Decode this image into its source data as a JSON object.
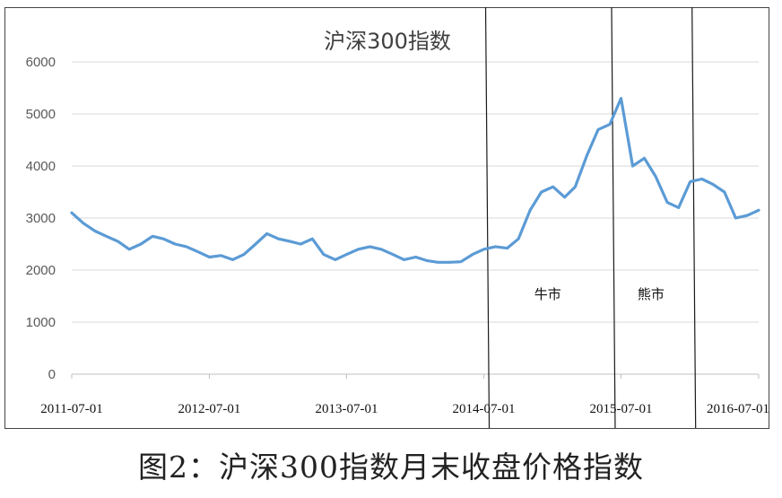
{
  "caption": "图2：沪深300指数月末收盘价格指数",
  "chart_data": {
    "type": "line",
    "title": "沪深300指数",
    "xlabel": "",
    "ylabel": "",
    "ylim": [
      0,
      6000
    ],
    "yticks": [
      0,
      1000,
      2000,
      3000,
      4000,
      5000,
      6000
    ],
    "xticks": [
      "2011-07-01",
      "2012-07-01",
      "2013-07-01",
      "2014-07-01",
      "2015-07-01",
      "2016-07-01"
    ],
    "grid": "horizontal",
    "legend": "none",
    "line_color": "#5b9bd5",
    "annotations": [
      {
        "label": "牛市",
        "from": "2014-07-01",
        "to": "2015-06-01"
      },
      {
        "label": "熊市",
        "from": "2015-06-01",
        "to": "2016-01-01"
      }
    ],
    "x": [
      "2011-07-01",
      "2011-08-01",
      "2011-09-01",
      "2011-10-01",
      "2011-11-01",
      "2011-12-01",
      "2012-01-01",
      "2012-02-01",
      "2012-03-01",
      "2012-04-01",
      "2012-05-01",
      "2012-06-01",
      "2012-07-01",
      "2012-08-01",
      "2012-09-01",
      "2012-10-01",
      "2012-11-01",
      "2012-12-01",
      "2013-01-01",
      "2013-02-01",
      "2013-03-01",
      "2013-04-01",
      "2013-05-01",
      "2013-06-01",
      "2013-07-01",
      "2013-08-01",
      "2013-09-01",
      "2013-10-01",
      "2013-11-01",
      "2013-12-01",
      "2014-01-01",
      "2014-02-01",
      "2014-03-01",
      "2014-04-01",
      "2014-05-01",
      "2014-06-01",
      "2014-07-01",
      "2014-08-01",
      "2014-09-01",
      "2014-10-01",
      "2014-11-01",
      "2014-12-01",
      "2015-01-01",
      "2015-02-01",
      "2015-03-01",
      "2015-04-01",
      "2015-05-01",
      "2015-06-01",
      "2015-07-01",
      "2015-08-01",
      "2015-09-01",
      "2015-10-01",
      "2015-11-01",
      "2015-12-01",
      "2016-01-01",
      "2016-02-01",
      "2016-03-01",
      "2016-04-01",
      "2016-05-01",
      "2016-06-01",
      "2016-07-01"
    ],
    "values": [
      3100,
      2900,
      2750,
      2650,
      2550,
      2400,
      2500,
      2650,
      2600,
      2500,
      2450,
      2350,
      2250,
      2280,
      2200,
      2300,
      2500,
      2700,
      2600,
      2550,
      2500,
      2600,
      2300,
      2200,
      2300,
      2400,
      2450,
      2400,
      2300,
      2200,
      2250,
      2180,
      2150,
      2150,
      2160,
      2300,
      2400,
      2450,
      2420,
      2600,
      3150,
      3500,
      3600,
      3400,
      3600,
      4200,
      4700,
      4800,
      5300,
      4000,
      4150,
      3800,
      3300,
      3200,
      3700,
      3750,
      3650,
      3500,
      3000,
      3050,
      3150
    ]
  }
}
